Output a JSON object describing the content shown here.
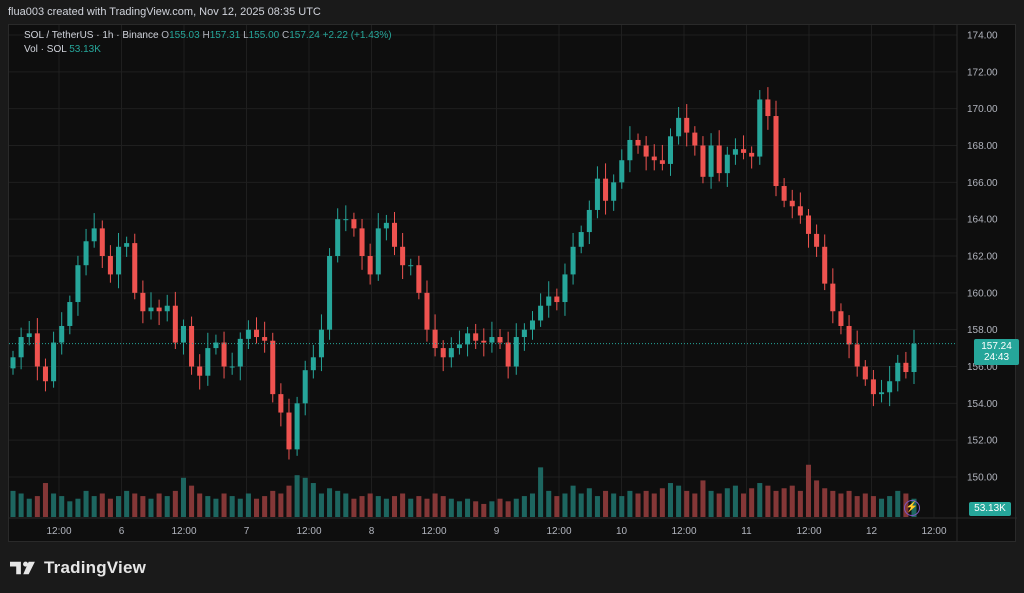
{
  "header": {
    "credit": "flua003 created with TradingView.com, Nov 12, 2025 08:35 UTC"
  },
  "legend": {
    "symbol": "SOL / TetherUS · 1h · Binance",
    "o_label": "O",
    "o_value": "155.03",
    "h_label": "H",
    "h_value": "157.31",
    "l_label": "L",
    "l_value": "155.00",
    "c_label": "C",
    "c_value": "157.24",
    "change": "+2.22 (+1.43%)",
    "vol_label": "Vol · SOL",
    "vol_value": "53.13K"
  },
  "price_tag": {
    "price": "157.24",
    "countdown": "24:43"
  },
  "volume_tag": "53.13K",
  "footer": {
    "brand": "TradingView"
  },
  "colors": {
    "up": "#26a69a",
    "down": "#ef5350",
    "vol_up": "#1f6b65",
    "vol_down": "#8b3a3a",
    "grid": "#1f1f1f",
    "last_price_line": "#26a69a"
  },
  "chart_data": {
    "type": "candlestick",
    "title": "SOL / TetherUS · 1h · Binance",
    "ylim": [
      148,
      175
    ],
    "y_ticks": [
      "150.00",
      "152.00",
      "154.00",
      "156.00",
      "158.00",
      "160.00",
      "162.00",
      "164.00",
      "166.00",
      "168.00",
      "170.00",
      "172.00",
      "174.00"
    ],
    "x_ticks": [
      "12:00",
      "6",
      "12:00",
      "7",
      "12:00",
      "8",
      "12:00",
      "9",
      "12:00",
      "10",
      "12:00",
      "11",
      "12:00",
      "12",
      "12:00"
    ],
    "grid": true,
    "last_price": 157.24,
    "close_path": [
      156.5,
      157.6,
      157.8,
      156.0,
      155.2,
      157.3,
      158.2,
      159.5,
      161.5,
      162.8,
      163.5,
      162.0,
      161.0,
      162.5,
      162.7,
      160.0,
      159.0,
      159.2,
      159.0,
      159.3,
      157.3,
      158.2,
      156.0,
      155.5,
      157.0,
      157.3,
      156.0,
      156.0,
      157.5,
      158.0,
      157.6,
      157.4,
      154.5,
      153.5,
      151.5,
      154.0,
      155.8,
      156.5,
      158.0,
      162.0,
      164.0,
      164.0,
      163.5,
      162.0,
      161.0,
      163.5,
      163.8,
      162.5,
      161.5,
      161.5,
      160.0,
      158.0,
      157.0,
      156.5,
      157.0,
      157.2,
      157.8,
      157.4,
      157.3,
      157.6,
      157.3,
      156.0,
      157.6,
      158.0,
      158.5,
      159.3,
      159.8,
      159.5,
      161.0,
      162.5,
      163.3,
      164.5,
      166.2,
      165.0,
      166.0,
      167.2,
      168.3,
      168.0,
      167.4,
      167.2,
      167.0,
      168.5,
      169.5,
      168.7,
      168.0,
      166.3,
      168.0,
      166.5,
      167.5,
      167.8,
      167.6,
      167.4,
      170.5,
      169.6,
      165.8,
      165.0,
      164.7,
      164.2,
      163.2,
      162.5,
      160.5,
      159.0,
      158.2,
      157.2,
      156.0,
      155.3,
      154.5,
      154.6,
      155.2,
      156.2,
      155.7,
      157.24
    ],
    "volume_series": [
      1,
      0.9,
      0.7,
      0.8,
      1.3,
      0.9,
      0.8,
      0.6,
      0.7,
      1.0,
      0.8,
      0.9,
      0.7,
      0.8,
      1.0,
      0.9,
      0.8,
      0.7,
      0.9,
      0.8,
      1.0,
      1.5,
      1.2,
      0.9,
      0.8,
      0.7,
      0.9,
      0.8,
      0.7,
      0.9,
      0.7,
      0.8,
      1.0,
      0.9,
      1.2,
      1.6,
      1.5,
      1.3,
      0.9,
      1.1,
      1.0,
      0.9,
      0.7,
      0.8,
      0.9,
      0.8,
      0.7,
      0.8,
      0.9,
      0.7,
      0.8,
      0.7,
      0.9,
      0.8,
      0.7,
      0.6,
      0.7,
      0.6,
      0.5,
      0.6,
      0.7,
      0.6,
      0.7,
      0.8,
      0.9,
      1.9,
      1.0,
      0.8,
      0.9,
      1.2,
      0.9,
      1.1,
      0.8,
      1.0,
      0.9,
      0.8,
      1.0,
      0.9,
      1.0,
      0.9,
      1.1,
      1.3,
      1.2,
      1.0,
      0.9,
      1.4,
      1.0,
      0.9,
      1.1,
      1.2,
      0.9,
      1.1,
      1.3,
      1.2,
      1.0,
      1.1,
      1.2,
      1.0,
      2.0,
      1.4,
      1.1,
      1.0,
      0.9,
      1.0,
      0.8,
      0.9,
      0.8,
      0.7,
      0.8,
      1.0,
      0.9,
      0.7
    ],
    "candle_count": 112
  }
}
